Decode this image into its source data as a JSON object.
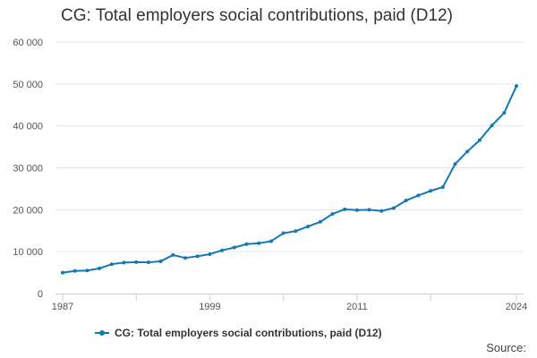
{
  "colors": {
    "series": "#1478b4",
    "grid": "#e6e6e6",
    "axis": "#cccccc"
  },
  "chart_data": {
    "type": "line",
    "title": "CG: Total employers social contributions, paid (D12)",
    "xlabel": "",
    "ylabel": "",
    "xlim": [
      1987,
      2024
    ],
    "ylim": [
      0,
      60000
    ],
    "x_tick_labels": [
      "1987",
      "1999",
      "2011",
      "2024"
    ],
    "y_tick_labels": [
      "0",
      "10 000",
      "20 000",
      "30 000",
      "40 000",
      "50 000",
      "60 000"
    ],
    "y_ticks": [
      0,
      10000,
      20000,
      30000,
      40000,
      50000,
      60000
    ],
    "x_ticks": [
      1987,
      1999,
      2011,
      2024
    ],
    "x_minor_ticks": [
      1987,
      1993,
      1999,
      2005,
      2011,
      2017,
      2024
    ],
    "legend_position": "bottom",
    "series": [
      {
        "name": "CG: Total employers social contributions, paid (D12)",
        "x": [
          1987,
          1988,
          1989,
          1990,
          1991,
          1992,
          1993,
          1994,
          1995,
          1996,
          1997,
          1998,
          1999,
          2000,
          2001,
          2002,
          2003,
          2004,
          2005,
          2006,
          2007,
          2008,
          2009,
          2010,
          2011,
          2012,
          2013,
          2014,
          2015,
          2016,
          2017,
          2018,
          2019,
          2020,
          2021,
          2022,
          2023,
          2024
        ],
        "values": [
          5000,
          5400,
          5500,
          6000,
          7000,
          7400,
          7500,
          7450,
          7700,
          9200,
          8500,
          8900,
          9400,
          10300,
          11000,
          11800,
          12000,
          12500,
          14400,
          14900,
          16000,
          17100,
          19000,
          20100,
          19900,
          20000,
          19700,
          20400,
          22200,
          23400,
          24500,
          25400,
          30900,
          33900,
          36600,
          40100,
          43100,
          49500
        ]
      }
    ]
  },
  "source_label": "Source:"
}
